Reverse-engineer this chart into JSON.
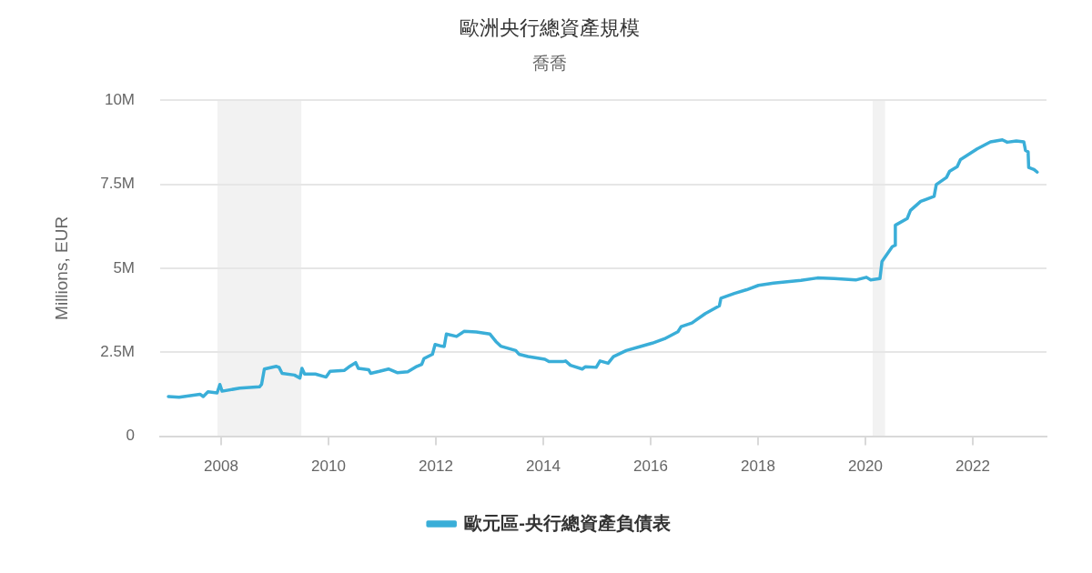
{
  "chart_data": {
    "type": "line",
    "title": "歐洲央行總資產規模",
    "subtitle": "喬喬",
    "ylabel": "Millions, EUR",
    "x": [
      "2007-01-08",
      "2007-03-22",
      "2007-08-11",
      "2007-09-02",
      "2007-10-04",
      "2007-12-05",
      "2007-12-24",
      "2008-01-08",
      "2008-05-07",
      "2008-09-19",
      "2008-10-03",
      "2008-10-22",
      "2009-01-12",
      "2009-01-30",
      "2009-02-20",
      "2009-05-15",
      "2009-06-21",
      "2009-07-05",
      "2009-07-23",
      "2009-10-04",
      "2009-12-16",
      "2010-01-12",
      "2010-04-20",
      "2010-05-19",
      "2010-07-05",
      "2010-07-23",
      "2010-10-01",
      "2010-10-15",
      "2010-12-13",
      "2011-02-13",
      "2011-04-16",
      "2011-06-24",
      "2011-08-25",
      "2011-09-27",
      "2011-10-12",
      "2011-12-09",
      "2011-12-27",
      "2012-02-09",
      "2012-02-27",
      "2012-03-13",
      "2012-05-21",
      "2012-07-11",
      "2012-10-03",
      "2013-01-04",
      "2013-02-13",
      "2013-03-18",
      "2013-06-28",
      "2013-07-20",
      "2013-09-20",
      "2014-01-12",
      "2014-02-09",
      "2014-05-15",
      "2014-06-02",
      "2014-07-05",
      "2014-09-23",
      "2014-10-15",
      "2014-12-27",
      "2015-01-22",
      "2015-03-18",
      "2015-04-23",
      "2015-07-20",
      "2015-10-23",
      "2016-01-12",
      "2016-04-05",
      "2016-07-05",
      "2016-07-27",
      "2016-10-08",
      "2017-01-08",
      "2017-04-13",
      "2017-04-24",
      "2017-07-24",
      "2017-10-16",
      "2018-01-04",
      "2018-04-17",
      "2018-10-20",
      "2019-02-09",
      "2019-06-03",
      "2019-10-27",
      "2020-01-08",
      "2020-02-06",
      "2020-04-09",
      "2020-04-23",
      "2020-07-02",
      "2020-07-20",
      "2020-07-23",
      "2020-10-12",
      "2020-11-03",
      "2021-01-12",
      "2021-04-13",
      "2021-04-28",
      "2021-07-06",
      "2021-07-28",
      "2021-09-17",
      "2021-10-09",
      "2022-01-30",
      "2022-05-01",
      "2022-07-21",
      "2022-08-23",
      "2022-10-24",
      "2022-12-14",
      "2022-12-25",
      "2023-01-12",
      "2023-01-16",
      "2023-02-21",
      "2023-03-15"
    ],
    "series": [
      {
        "name": "歐元區-央行總資產負債表",
        "color": "#3aaed8",
        "values": [
          1180000,
          1160000,
          1250000,
          1180000,
          1320000,
          1290000,
          1540000,
          1340000,
          1430000,
          1470000,
          1540000,
          2000000,
          2080000,
          2050000,
          1870000,
          1820000,
          1730000,
          2020000,
          1850000,
          1850000,
          1760000,
          1930000,
          1960000,
          2060000,
          2190000,
          2020000,
          1980000,
          1870000,
          1930000,
          2000000,
          1890000,
          1920000,
          2080000,
          2140000,
          2310000,
          2440000,
          2730000,
          2680000,
          2670000,
          3040000,
          2970000,
          3120000,
          3100000,
          3040000,
          2820000,
          2680000,
          2550000,
          2440000,
          2370000,
          2290000,
          2220000,
          2220000,
          2240000,
          2110000,
          2000000,
          2070000,
          2050000,
          2240000,
          2170000,
          2370000,
          2550000,
          2670000,
          2770000,
          2900000,
          3110000,
          3260000,
          3370000,
          3650000,
          3880000,
          4110000,
          4250000,
          4360000,
          4490000,
          4560000,
          4640000,
          4710000,
          4690000,
          4650000,
          4730000,
          4650000,
          4690000,
          5200000,
          5640000,
          5680000,
          6280000,
          6480000,
          6720000,
          6990000,
          7140000,
          7490000,
          7700000,
          7890000,
          8020000,
          8230000,
          8550000,
          8760000,
          8820000,
          8750000,
          8790000,
          8760000,
          8510000,
          8460000,
          8000000,
          7940000,
          7860000
        ]
      }
    ],
    "xlim": [
      "2006-11-13",
      "2023-05-17"
    ],
    "xticks": [
      "2008",
      "2010",
      "2012",
      "2014",
      "2016",
      "2018",
      "2020",
      "2022"
    ],
    "ylim": [
      0,
      10000000
    ],
    "yticks": [
      0,
      {
        "value": 2500000,
        "label": "2.5M"
      },
      {
        "value": 5000000,
        "label": "5M"
      },
      {
        "value": 7500000,
        "label": "7.5M"
      },
      {
        "value": 10000000,
        "label": "10M"
      }
    ],
    "bands": [
      {
        "axis": "x",
        "from": "2007-12-08",
        "to": "2009-07-01",
        "color": "#f2f2f2"
      },
      {
        "axis": "x",
        "from": "2020-02-20",
        "to": "2020-05-14",
        "color": "#f2f2f2"
      }
    ],
    "grid": "y",
    "legend": "bottom",
    "line_style": "solid"
  }
}
